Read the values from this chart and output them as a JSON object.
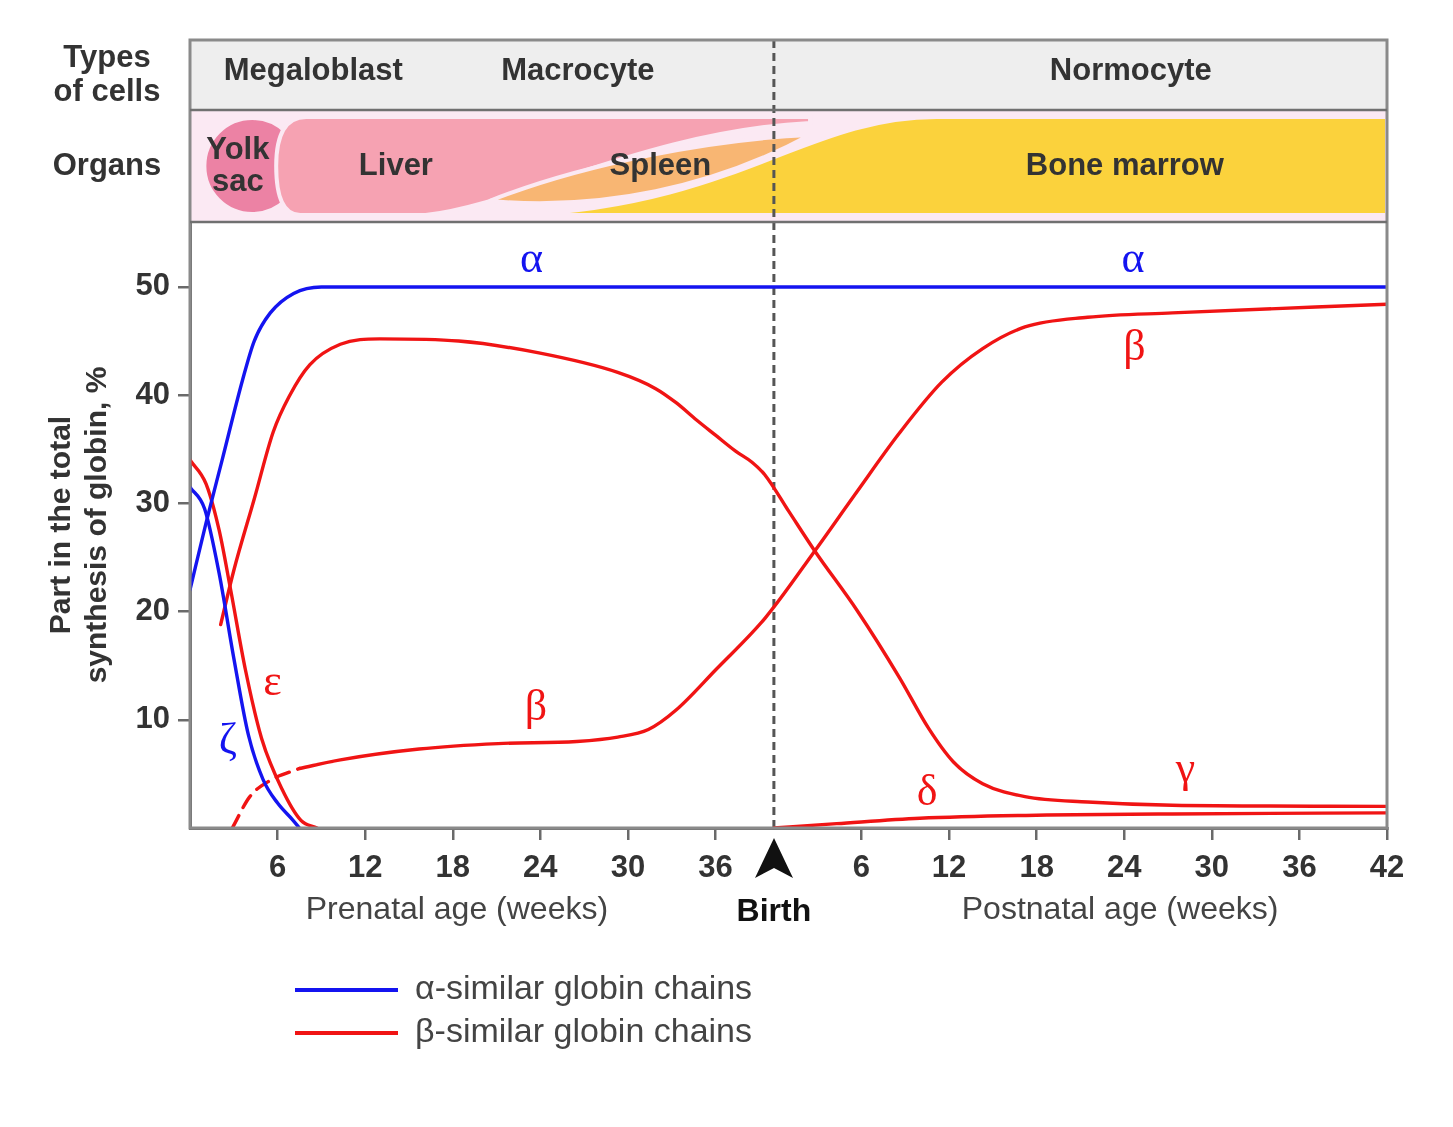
{
  "chart_data": {
    "type": "line",
    "xlabel": "Prenatal age (weeks)",
    "x2label": "Postnatal age (weeks)",
    "ylabel": "Part in the total synthesis of globin, %",
    "xlim": [
      0,
      82
    ],
    "xticks": [
      6,
      12,
      18,
      24,
      30,
      36
    ],
    "x2lim": [
      -40,
      42
    ],
    "x2ticks": [
      6,
      12,
      18,
      24,
      30,
      36,
      42
    ],
    "ylim": [
      0,
      56
    ],
    "yticks": [
      10,
      20,
      30,
      40,
      50
    ],
    "grid": false,
    "marker": "none",
    "legend": "bottom left",
    "series": [
      {
        "name": "α-similar globin chains",
        "color": "#1414f0",
        "x": [
          0,
          1.1,
          2.2,
          3.6,
          4.4,
          5.5,
          7.1,
          9,
          82
        ],
        "values": [
          22,
          28.2,
          34,
          41.4,
          45,
          47.6,
          49.4,
          50,
          50
        ]
      },
      {
        "color": "#1414f0",
        "x": [
          0,
          1,
          2,
          3,
          4,
          5,
          6,
          7,
          7.5
        ],
        "values": [
          31.5,
          29.5,
          23.5,
          15.7,
          8.6,
          4.5,
          2.3,
          0.8,
          0
        ]
      },
      {
        "color": "#f01414",
        "x": [
          0,
          1.1,
          2,
          2.8,
          3.8,
          4.9,
          6.3,
          7.6,
          8.7
        ],
        "values": [
          34,
          31.8,
          27.5,
          21.9,
          14.6,
          8.3,
          3.6,
          0.7,
          0
        ]
      },
      {
        "color": "#f01414",
        "x": [
          2.1,
          3,
          4.4,
          5.7,
          6.8,
          8.2,
          10.3,
          13,
          18.4,
          23.9,
          29.3,
          31.9,
          33.3,
          34.7,
          36,
          37.4,
          38.5,
          39.4,
          41,
          42.8,
          45.7,
          48.6,
          50.6,
          52.3,
          54.3,
          57.2,
          61.5,
          67.3,
          82
        ],
        "values": [
          18.8,
          23.8,
          30.4,
          36.6,
          39.9,
          42.8,
          44.7,
          45.2,
          45,
          43.9,
          42.1,
          40.6,
          39.3,
          37.7,
          36.3,
          34.8,
          33.8,
          32.6,
          29.3,
          25.6,
          20.1,
          13.9,
          9.2,
          6.1,
          4.1,
          2.9,
          2.4,
          2.1,
          2
        ]
      },
      {
        "color": "#f01414",
        "line_style": "dashed",
        "x": [
          2.9,
          4.1,
          5.5,
          7.5
        ],
        "values": [
          0,
          2.9,
          4.4,
          5.5
        ]
      },
      {
        "name": "β-similar globin chains",
        "color": "#f01414",
        "x": [
          7.5,
          10.3,
          15.7,
          21.1,
          26.5,
          29.3,
          31.4,
          33.3,
          36,
          39.4,
          42.8,
          45.7,
          48.6,
          51.5,
          54.3,
          57.2,
          61.5,
          67.3,
          82
        ],
        "values": [
          5.5,
          6.3,
          7.3,
          7.8,
          8,
          8.4,
          9.1,
          10.9,
          14.6,
          19.4,
          25.6,
          31.1,
          36.5,
          41.2,
          44.3,
          46.3,
          47.2,
          47.6,
          48.4
        ]
      },
      {
        "color": "#f01414",
        "x": [
          40,
          44.3,
          50,
          58.7,
          67.3,
          82
        ],
        "values": [
          0,
          0.4,
          0.9,
          1.2,
          1.3,
          1.4
        ]
      }
    ],
    "ref_lines": [
      {
        "axis": "x",
        "value": 40,
        "label": "Birth",
        "line_style": "dashed",
        "color": "#555555"
      }
    ],
    "annotations": [
      "Types of cells",
      "Megaloblast",
      "Macrocyte",
      "Normocyte",
      "Organs",
      "Yolk sac",
      "Liver",
      "Spleen",
      "Bone marrow",
      {
        "text": "α",
        "x": 23.4,
        "y": 50
      },
      {
        "text": "α",
        "x": 64.6,
        "y": 50
      },
      {
        "text": "ζ",
        "x": 4.1,
        "y": 8.2
      },
      {
        "text": "ε",
        "x": 4,
        "y": 13.5
      },
      {
        "text": "β",
        "x": 23.7,
        "y": 7.9
      },
      {
        "text": "β",
        "x": 64.7,
        "y": 47.4
      },
      {
        "text": "δ",
        "x": 50.5,
        "y": 0.9
      },
      {
        "text": "γ",
        "x": 68.2,
        "y": 2.1
      }
    ]
  }
}
